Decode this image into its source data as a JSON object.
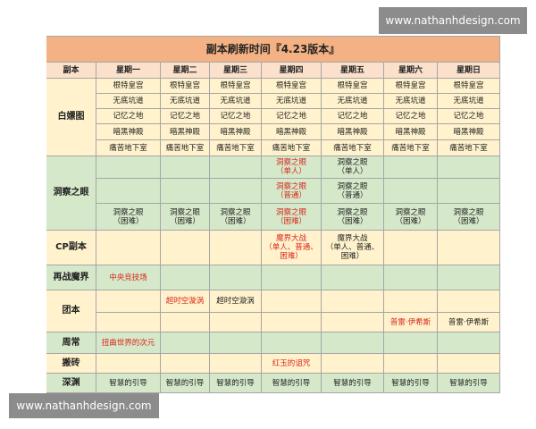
{
  "watermarks": [
    "www.nathanhdesign.com",
    "www.nathanhdesign.com"
  ],
  "table": {
    "title": "副本刷新时间『4.23版本』",
    "header": [
      "副本",
      "星期一",
      "星期二",
      "星期三",
      "星期四",
      "星期五",
      "星期六",
      "星期日"
    ],
    "sections": [
      {
        "label": "白嫖图",
        "shade": "yellow",
        "rows": [
          [
            {
              "lines": [
                "根特皇宫"
              ],
              "red": false
            },
            {
              "lines": [
                "根特皇宫"
              ],
              "red": false
            },
            {
              "lines": [
                "根特皇宫"
              ],
              "red": false
            },
            {
              "lines": [
                "根特皇宫"
              ],
              "red": false
            },
            {
              "lines": [
                "根特皇宫"
              ],
              "red": false
            },
            {
              "lines": [
                "根特皇宫"
              ],
              "red": false
            },
            {
              "lines": [
                "根特皇宫"
              ],
              "red": false
            }
          ],
          [
            {
              "lines": [
                "无底坑道"
              ],
              "red": false
            },
            {
              "lines": [
                "无底坑道"
              ],
              "red": false
            },
            {
              "lines": [
                "无底坑道"
              ],
              "red": false
            },
            {
              "lines": [
                "无底坑道"
              ],
              "red": false
            },
            {
              "lines": [
                "无底坑道"
              ],
              "red": false
            },
            {
              "lines": [
                "无底坑道"
              ],
              "red": false
            },
            {
              "lines": [
                "无底坑道"
              ],
              "red": false
            }
          ],
          [
            {
              "lines": [
                "记忆之地"
              ],
              "red": false
            },
            {
              "lines": [
                "记忆之地"
              ],
              "red": false
            },
            {
              "lines": [
                "记忆之地"
              ],
              "red": false
            },
            {
              "lines": [
                "记忆之地"
              ],
              "red": false
            },
            {
              "lines": [
                "记忆之地"
              ],
              "red": false
            },
            {
              "lines": [
                "记忆之地"
              ],
              "red": false
            },
            {
              "lines": [
                "记忆之地"
              ],
              "red": false
            }
          ],
          [
            {
              "lines": [
                "暗黑神殿"
              ],
              "red": false
            },
            {
              "lines": [
                "暗黑神殿"
              ],
              "red": false
            },
            {
              "lines": [
                "暗黑神殿"
              ],
              "red": false
            },
            {
              "lines": [
                "暗黑神殿"
              ],
              "red": false
            },
            {
              "lines": [
                "暗黑神殿"
              ],
              "red": false
            },
            {
              "lines": [
                "暗黑神殿"
              ],
              "red": false
            },
            {
              "lines": [
                "暗黑神殿"
              ],
              "red": false
            }
          ],
          [
            {
              "lines": [
                "痛苦地下室"
              ],
              "red": false
            },
            {
              "lines": [
                "痛苦地下室"
              ],
              "red": false
            },
            {
              "lines": [
                "痛苦地下室"
              ],
              "red": false
            },
            {
              "lines": [
                "痛苦地下室"
              ],
              "red": false
            },
            {
              "lines": [
                "痛苦地下室"
              ],
              "red": false
            },
            {
              "lines": [
                "痛苦地下室"
              ],
              "red": false
            },
            {
              "lines": [
                "痛苦地下室"
              ],
              "red": false
            }
          ]
        ]
      },
      {
        "label": "洞察之眼",
        "shade": "green",
        "rows": [
          [
            null,
            null,
            null,
            {
              "lines": [
                "洞察之眼",
                "（单人）"
              ],
              "red": true
            },
            {
              "lines": [
                "洞察之眼",
                "（单人）"
              ],
              "red": false
            },
            null,
            null
          ],
          [
            null,
            null,
            null,
            {
              "lines": [
                "洞察之眼",
                "（普通）"
              ],
              "red": true
            },
            {
              "lines": [
                "洞察之眼",
                "（普通）"
              ],
              "red": false
            },
            null,
            null
          ],
          [
            {
              "lines": [
                "洞察之眼",
                "（困难）"
              ],
              "red": false
            },
            {
              "lines": [
                "洞察之眼",
                "（困难）"
              ],
              "red": false
            },
            {
              "lines": [
                "洞察之眼",
                "（困难）"
              ],
              "red": false
            },
            {
              "lines": [
                "洞察之眼",
                "（困难）"
              ],
              "red": true
            },
            {
              "lines": [
                "洞察之眼",
                "（困难）"
              ],
              "red": false
            },
            {
              "lines": [
                "洞察之眼",
                "（困难）"
              ],
              "red": false
            },
            {
              "lines": [
                "洞察之眼",
                "（困难）"
              ],
              "red": false
            }
          ]
        ]
      },
      {
        "label": "CP副本",
        "shade": "yellow",
        "rows": [
          [
            null,
            null,
            null,
            {
              "lines": [
                "魔界大战",
                "（单人、普通、",
                "困难）"
              ],
              "red": true
            },
            {
              "lines": [
                "魔界大战",
                "（单人、普通、",
                "困难）"
              ],
              "red": false
            },
            null,
            null
          ]
        ]
      },
      {
        "label": "再战魔界",
        "shade": "green",
        "rows": [
          [
            {
              "lines": [
                "中央竞技场"
              ],
              "red": true
            },
            null,
            null,
            null,
            null,
            null,
            null
          ]
        ]
      },
      {
        "label": "团本",
        "shade": "yellow",
        "rows": [
          [
            null,
            {
              "lines": [
                "超时空漩涡"
              ],
              "red": true
            },
            {
              "lines": [
                "超时空漩涡"
              ],
              "red": false
            },
            null,
            null,
            null,
            null
          ],
          [
            null,
            null,
            null,
            null,
            null,
            {
              "lines": [
                "普雷·伊希斯"
              ],
              "red": true
            },
            {
              "lines": [
                "普雷·伊希斯"
              ],
              "red": false
            }
          ]
        ]
      },
      {
        "label": "周常",
        "shade": "green",
        "rows": [
          [
            {
              "lines": [
                "扭曲世界的次元"
              ],
              "red": true
            },
            null,
            null,
            null,
            null,
            null,
            null
          ]
        ]
      },
      {
        "label": "搬砖",
        "shade": "yellow",
        "rows": [
          [
            null,
            null,
            null,
            {
              "lines": [
                "红玉的诅咒"
              ],
              "red": true
            },
            null,
            null,
            null
          ]
        ]
      },
      {
        "label": "深渊",
        "shade": "green",
        "rows": [
          [
            {
              "lines": [
                "智慧的引导"
              ],
              "red": false
            },
            {
              "lines": [
                "智慧的引导"
              ],
              "red": false
            },
            {
              "lines": [
                "智慧的引导"
              ],
              "red": false
            },
            {
              "lines": [
                "智慧的引导"
              ],
              "red": false
            },
            {
              "lines": [
                "智慧的引导"
              ],
              "red": false
            },
            {
              "lines": [
                "智慧的引导"
              ],
              "red": false
            },
            {
              "lines": [
                "智慧的引导"
              ],
              "red": false
            }
          ]
        ]
      }
    ]
  }
}
